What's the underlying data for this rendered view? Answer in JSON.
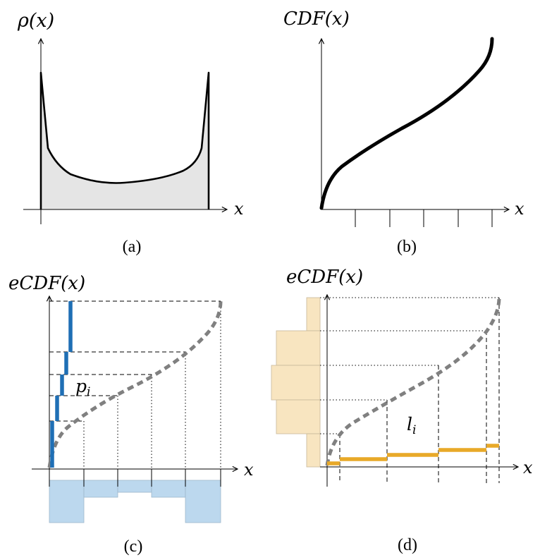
{
  "panels": {
    "a": {
      "ylabel": "ρ(x)",
      "xlabel": "x",
      "caption": "(a)"
    },
    "b": {
      "ylabel": "CDF(x)",
      "xlabel": "x",
      "caption": "(b)"
    },
    "c": {
      "ylabel": "eCDF(x)",
      "xlabel": "x",
      "caption": "(c)",
      "annotation_base": "p",
      "annotation_sub": "i"
    },
    "d": {
      "ylabel": "eCDF(x)",
      "xlabel": "x",
      "caption": "(d)",
      "annotation_base": "l",
      "annotation_sub": "i"
    }
  },
  "colors": {
    "density_fill": "#e5e5e5",
    "curve": "#000000",
    "ecdf_dashed": "#808080",
    "step_blue": "#1f6fb5",
    "hist_blue": "#bcd8ee",
    "step_orange": "#e8a928",
    "hist_tan": "#f8e5c0"
  }
}
